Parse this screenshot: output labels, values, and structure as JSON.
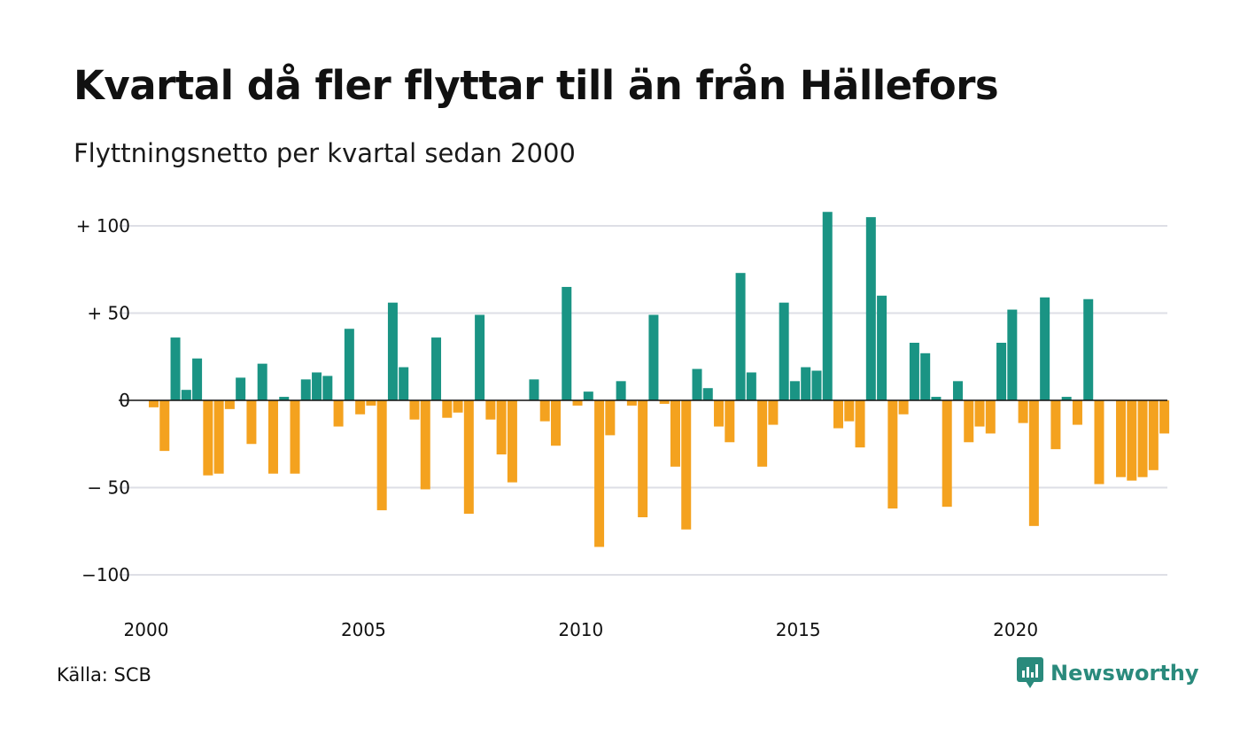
{
  "title": "Kvartal då fler flyttar till än från Hällefors",
  "subtitle": "Flyttningsnetto per kvartal sedan 2000",
  "source": "Källa: SCB",
  "brand": {
    "name": "Newsworthy",
    "icon": "newsworthy-logo-icon"
  },
  "colors": {
    "positive": "#1a9484",
    "negative": "#f4a21f",
    "grid": "#dedfe6",
    "zero": "#111111"
  },
  "chart_data": {
    "type": "bar",
    "xlabel": "",
    "ylabel": "",
    "ylim": [
      -113,
      108
    ],
    "y_ticks": [
      {
        "value": 100,
        "label": "+ 100"
      },
      {
        "value": 50,
        "label": "+  50"
      },
      {
        "value": 0,
        "label": "0"
      },
      {
        "value": -50,
        "label": "− 50"
      },
      {
        "value": -100,
        "label": "−100"
      }
    ],
    "x_ticks": [
      {
        "year": 2000,
        "label": "2000"
      },
      {
        "year": 2005,
        "label": "2005"
      },
      {
        "year": 2010,
        "label": "2010"
      },
      {
        "year": 2015,
        "label": "2015"
      },
      {
        "year": 2020,
        "label": "2020"
      }
    ],
    "start": "2000 Q1",
    "grid": true,
    "legend": "none",
    "values": [
      -4,
      -29,
      36,
      6,
      24,
      -43,
      -42,
      -5,
      13,
      -25,
      21,
      -42,
      2,
      -42,
      12,
      16,
      14,
      -15,
      41,
      -8,
      -3,
      -63,
      56,
      19,
      -11,
      -51,
      36,
      -10,
      -7,
      -65,
      49,
      -11,
      -31,
      -47,
      0,
      12,
      -12,
      -26,
      65,
      -3,
      5,
      -84,
      -20,
      11,
      -3,
      -67,
      49,
      -2,
      -38,
      -74,
      18,
      7,
      -15,
      -24,
      73,
      16,
      -38,
      -14,
      56,
      11,
      19,
      17,
      108,
      -16,
      -12,
      -27,
      105,
      60,
      -62,
      -8,
      33,
      27,
      2,
      -61,
      11,
      -24,
      -15,
      -19,
      33,
      52,
      -13,
      -72,
      59,
      -28,
      2,
      -14,
      58,
      -48,
      0,
      -44,
      -46,
      -44,
      -40,
      -19
    ]
  }
}
